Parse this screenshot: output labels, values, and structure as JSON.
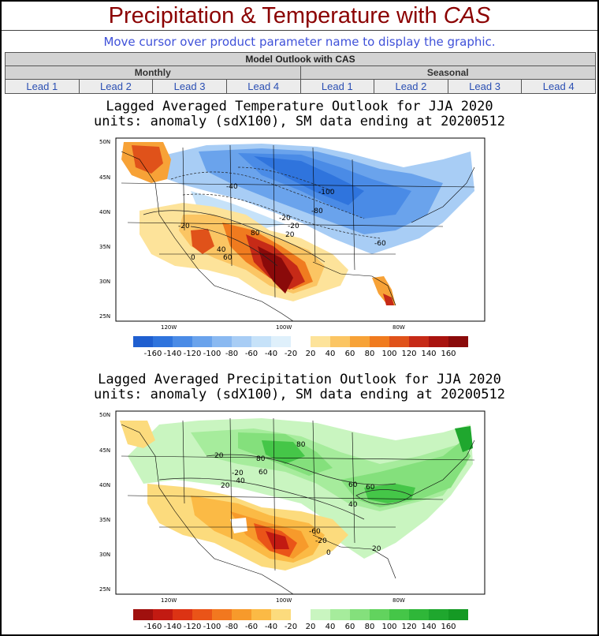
{
  "header": {
    "title_main": "Precipitation & Temperature with ",
    "title_em": "CAS",
    "hint": "Move cursor over product parameter name to display the graphic."
  },
  "nav": {
    "section_title": "Model Outlook with CAS",
    "monthly_label": "Monthly",
    "seasonal_label": "Seasonal",
    "monthly_leads": [
      "Lead 1",
      "Lead 2",
      "Lead 3",
      "Lead 4"
    ],
    "seasonal_leads": [
      "Lead 1",
      "Lead 2",
      "Lead 3",
      "Lead 4"
    ]
  },
  "maps": [
    {
      "title_line1": "Lagged Averaged Temperature Outlook for JJA 2020",
      "title_line2": "units: anomaly (sdX100), SM data ending at 20200512",
      "lat_labels": [
        "50N",
        "45N",
        "40N",
        "35N",
        "30N",
        "25N"
      ],
      "lon_labels": [
        "120W",
        "100W",
        "80W"
      ],
      "contour_labels": [
        "-40",
        "-100",
        "-80",
        "-20",
        "-20",
        "20",
        "80",
        "-60",
        "40",
        "60",
        "-20",
        "0"
      ],
      "colorbar_labels": [
        "-160",
        "-140",
        "-120",
        "-100",
        "-80",
        "-60",
        "-40",
        "-20",
        "20",
        "40",
        "60",
        "80",
        "100",
        "120",
        "140",
        "160"
      ],
      "colorbar_colors": [
        "#1f5fd0",
        "#2f74dd",
        "#4a8be6",
        "#6aa3ec",
        "#8ab9f1",
        "#a8cdf5",
        "#c6e2f9",
        "#dff0fb",
        "#ffffff",
        "#fde39a",
        "#fbc563",
        "#f7a237",
        "#f07b1f",
        "#e0521a",
        "#c62a17",
        "#a9130f",
        "#8a0a0a"
      ]
    },
    {
      "title_line1": "Lagged Averaged Precipitation Outlook for JJA 2020",
      "title_line2": "units: anomaly (sdX100), SM data ending at 20200512",
      "lat_labels": [
        "50N",
        "45N",
        "40N",
        "35N",
        "30N",
        "25N"
      ],
      "lon_labels": [
        "120W",
        "100W",
        "80W"
      ],
      "contour_labels": [
        "20",
        "80",
        "-20",
        "-40",
        "20",
        "60",
        "60",
        "80",
        "60",
        "40",
        "-60",
        "-20",
        "20",
        "0"
      ],
      "colorbar_labels": [
        "-160",
        "-140",
        "-120",
        "-100",
        "-80",
        "-60",
        "-40",
        "-20",
        "20",
        "40",
        "60",
        "80",
        "100",
        "120",
        "140",
        "160"
      ],
      "colorbar_colors": [
        "#a0100e",
        "#c21a12",
        "#dc3314",
        "#ea5418",
        "#f2781f",
        "#f79a2b",
        "#fbba45",
        "#fcdb7d",
        "#ffffff",
        "#c9f5c0",
        "#a6ec9c",
        "#84e07c",
        "#62d35e",
        "#45c648",
        "#2fb739",
        "#1fa72e",
        "#159a24"
      ]
    }
  ]
}
